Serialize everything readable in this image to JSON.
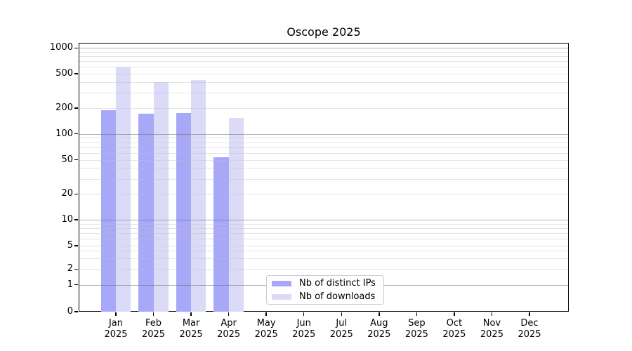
{
  "chart_data": {
    "type": "bar",
    "title": "Oscope 2025",
    "categories": [
      "Jan 2025",
      "Feb 2025",
      "Mar 2025",
      "Apr 2025",
      "May 2025",
      "Jun 2025",
      "Jul 2025",
      "Aug 2025",
      "Sep 2025",
      "Oct 2025",
      "Nov 2025",
      "Dec 2025"
    ],
    "series": [
      {
        "name": "Nb of distinct IPs",
        "color": "#a8a8f8",
        "values": [
          190,
          172,
          176,
          53,
          null,
          null,
          null,
          null,
          null,
          null,
          null,
          null
        ]
      },
      {
        "name": "Nb of downloads",
        "color": "#dbdbf8",
        "values": [
          590,
          400,
          420,
          152,
          null,
          null,
          null,
          null,
          null,
          null,
          null,
          null
        ]
      }
    ],
    "yscale": "log-above-1 with compressed 0-2 region (symlog-like)",
    "ylim": [
      0,
      1000
    ],
    "y_ticks": [
      1000,
      500,
      200,
      100,
      50,
      20,
      10,
      5,
      2,
      1,
      0
    ],
    "grid": "horizontal major (1,10,100,1000) gray + minor (2-9 per decade) light gray, drawn over bars",
    "legend_position": "bottom-center inside plot",
    "xlabel": "",
    "ylabel": ""
  }
}
